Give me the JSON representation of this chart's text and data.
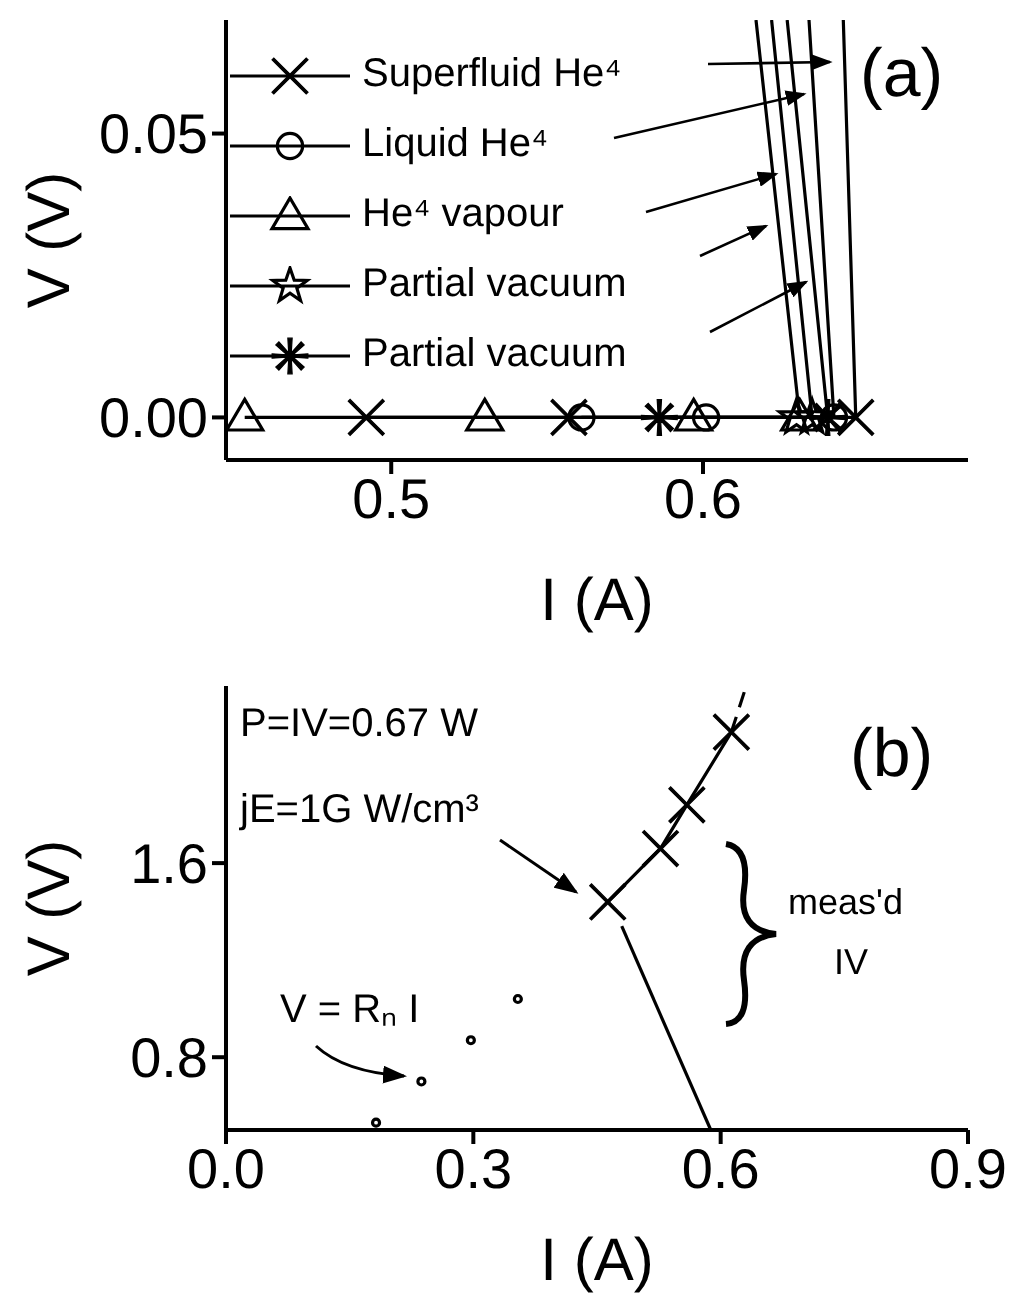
{
  "chart_data": [
    {
      "type": "line",
      "xlabel": "I (A)",
      "ylabel": "V (V)",
      "xlim": [
        0.447,
        0.685
      ],
      "ylim": [
        -0.0075,
        0.07
      ],
      "xticks": [
        0.5,
        0.6
      ],
      "yticks": [
        {
          "value": 0,
          "label": "0.00"
        },
        {
          "value": 0.05,
          "label": "0.05"
        }
      ],
      "legend": "top left",
      "annotations": [
        "(a)"
      ],
      "series": [
        {
          "name": "Superfluid He⁴",
          "color": "#000000",
          "marker": "cross",
          "x": [
            0.492,
            0.557,
            0.649,
            0.645
          ],
          "values": [
            0,
            0,
            0,
            0.07
          ]
        },
        {
          "name": "Liquid He⁴",
          "color": "#000000",
          "marker": "circle",
          "x": [
            0.561,
            0.601,
            0.642,
            0.634
          ],
          "values": [
            0,
            0,
            0,
            0.07
          ]
        },
        {
          "name": "He⁴ vapour",
          "color": "#000000",
          "marker": "triangle",
          "x": [
            0.453,
            0.53,
            0.597,
            0.631,
            0.617
          ],
          "values": [
            0,
            0,
            0,
            0,
            0.07
          ]
        },
        {
          "name": "Partial vacuum",
          "color": "#000000",
          "marker": "star",
          "x": [
            0.63,
            0.635,
            0.622
          ],
          "values": [
            0,
            0,
            0.07
          ]
        },
        {
          "name": "Partial vacuum",
          "color": "#000000",
          "marker": "asterisk",
          "x": [
            0.586,
            0.64,
            0.627
          ],
          "values": [
            0,
            0,
            0.07
          ]
        }
      ]
    },
    {
      "type": "line",
      "xlabel": "I (A)",
      "ylabel": "V (V)",
      "xlim": [
        0,
        0.9
      ],
      "ylim": [
        0.5,
        2.33
      ],
      "xticks": [
        {
          "value": 0,
          "label": "0.0"
        },
        0.3,
        0.6,
        0.9
      ],
      "yticks": [
        0.8,
        1.6
      ],
      "annotations": [
        "(b)",
        "P=IV=0.67 W",
        "jE=1G W/cm³",
        "meas'd",
        "IV",
        "V = Rₙ I"
      ],
      "series": [
        {
          "color": "#000000",
          "marker": "cross",
          "x": [
            0.463,
            0.527,
            0.559,
            0.613
          ],
          "values": [
            1.44,
            1.66,
            1.84,
            2.14
          ]
        },
        {
          "color": "#000000",
          "marker": "none",
          "line_style": "dashed",
          "x": [
            0.613,
            0.631
          ],
          "values": [
            2.14,
            2.33
          ]
        },
        {
          "color": "#000000",
          "marker": "none",
          "x": [
            0.48,
            0.588
          ],
          "values": [
            1.34,
            0.5
          ]
        },
        {
          "type": "scatter",
          "color": "#000000",
          "marker": "circle",
          "x": [
            0.182,
            0.237,
            0.297,
            0.354
          ],
          "values": [
            0.53,
            0.7,
            0.87,
            1.04
          ]
        }
      ]
    }
  ]
}
